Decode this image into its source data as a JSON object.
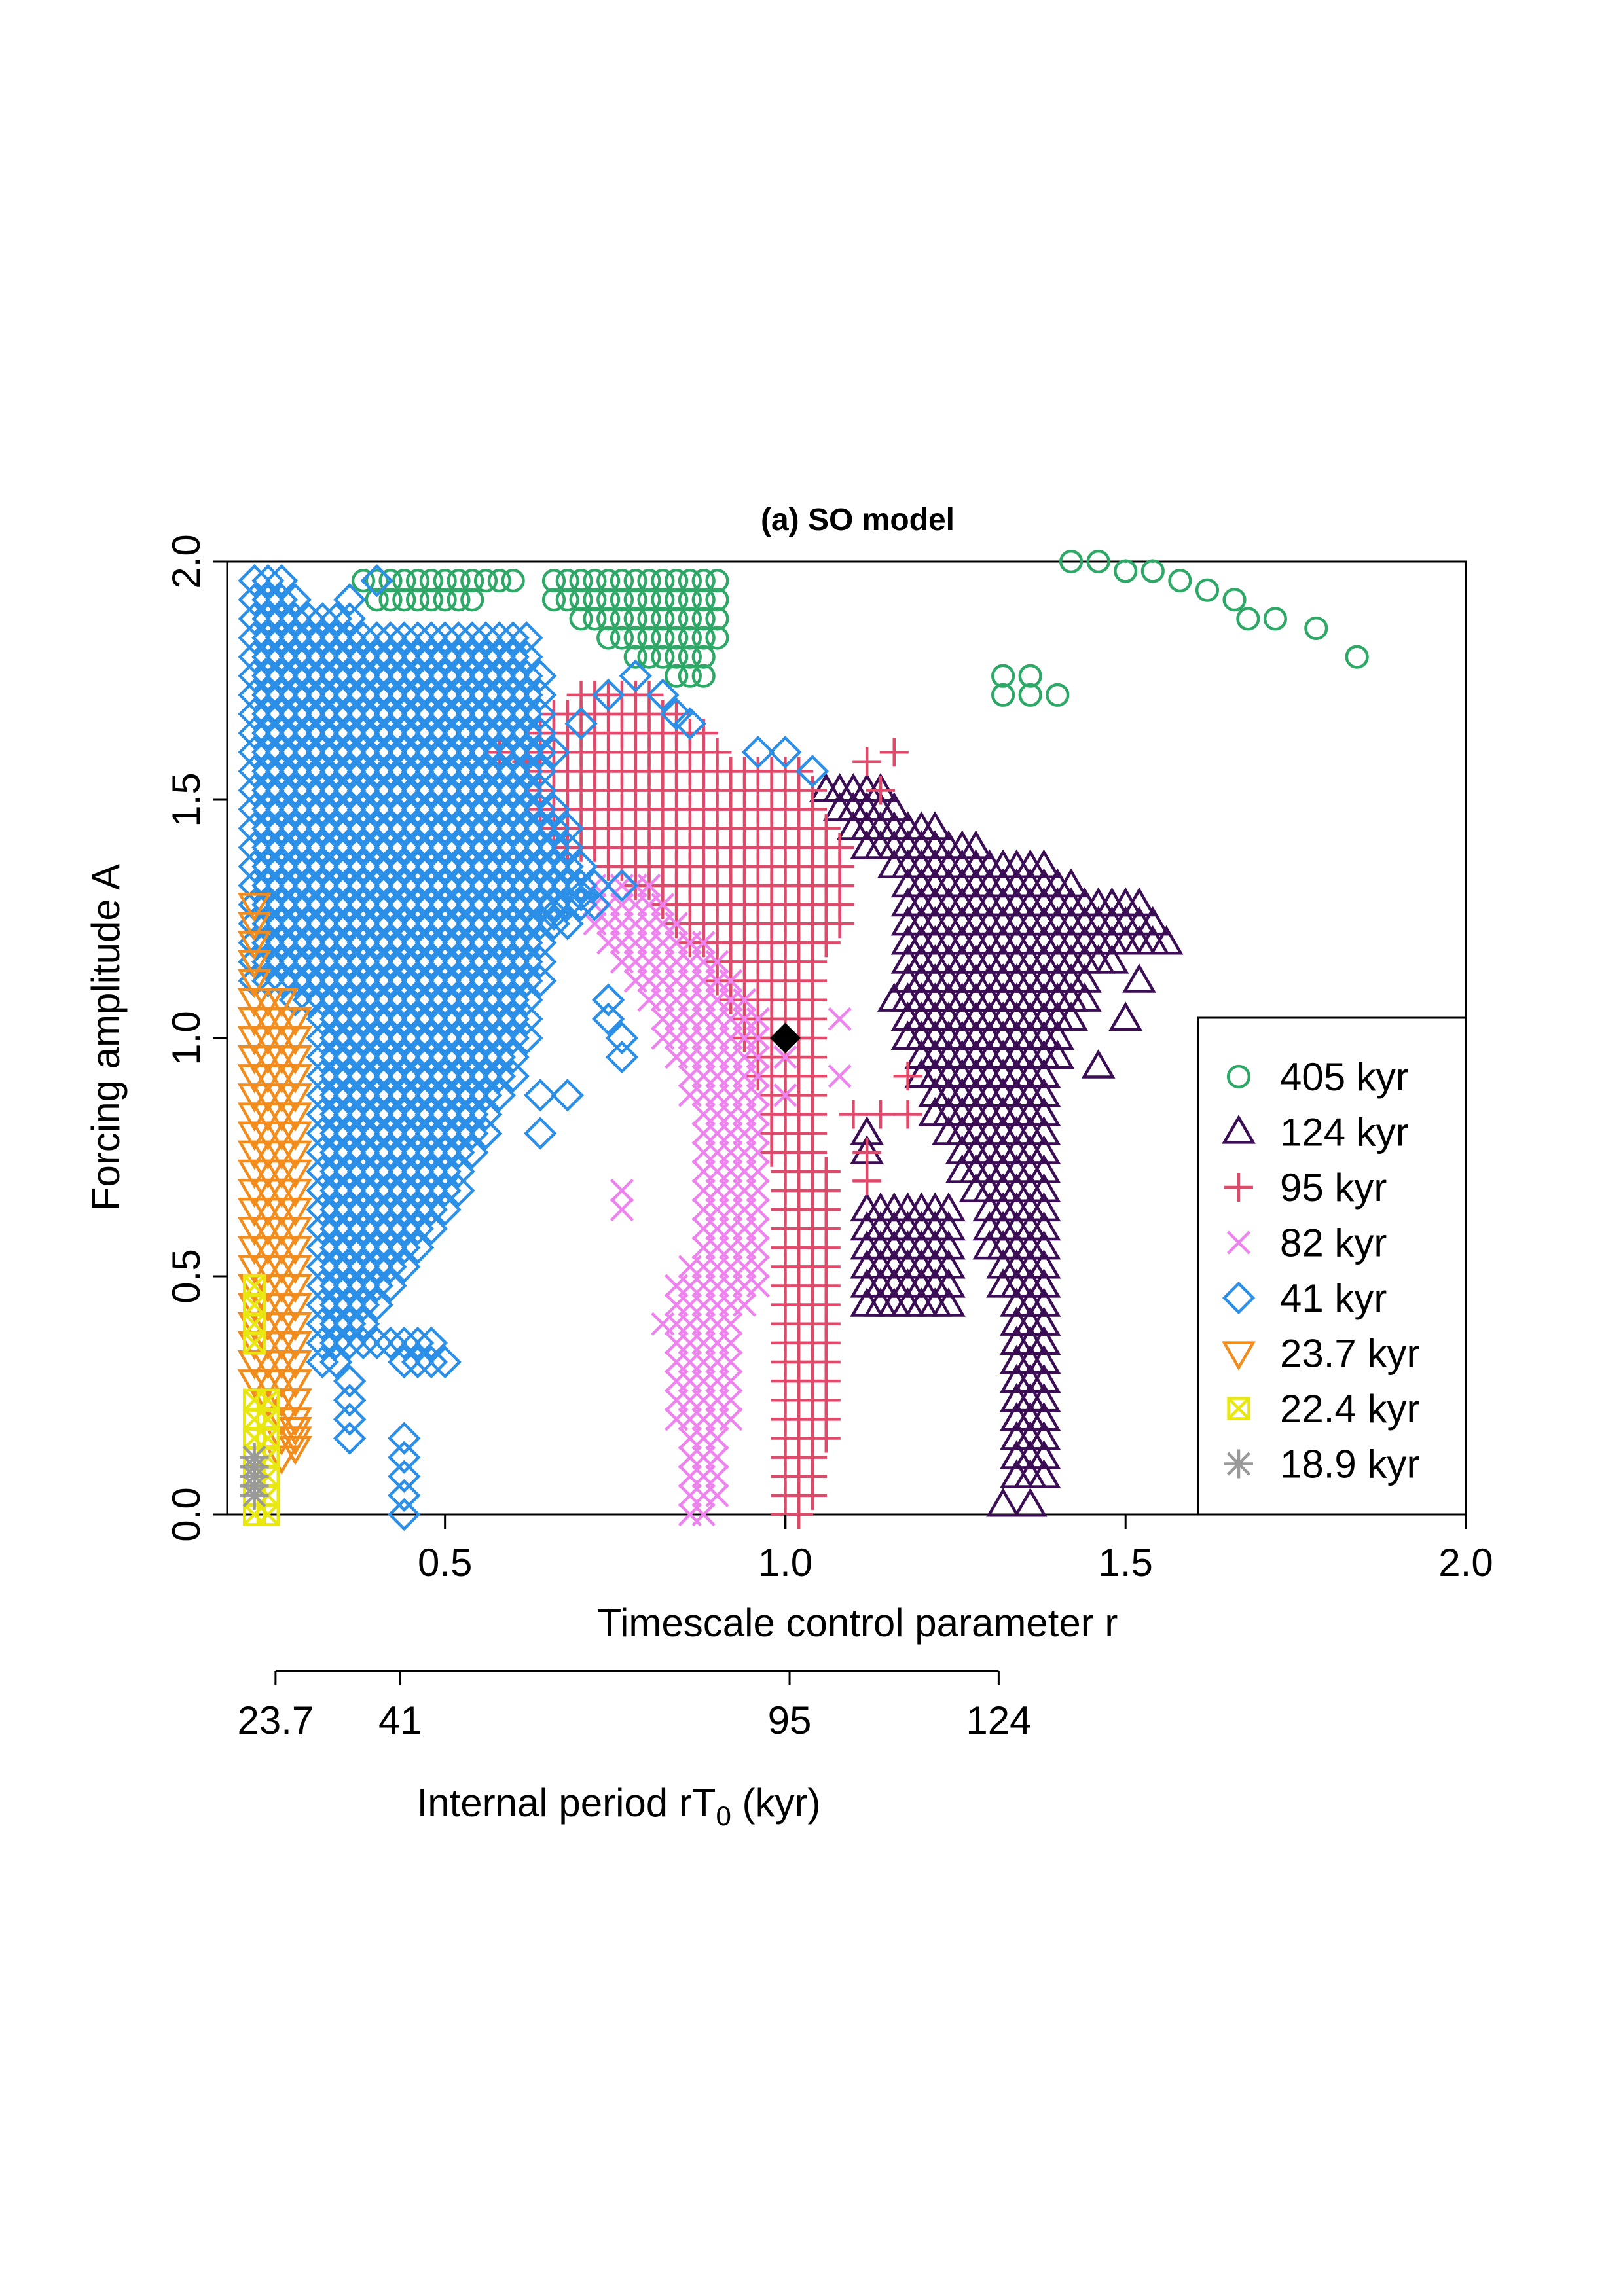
{
  "chart_data": {
    "type": "scatter",
    "title": "(a) SO model",
    "xlabel": "Timescale control parameter r",
    "ylabel": "Forcing amplitude A",
    "xlim": [
      0.18,
      2.0
    ],
    "ylim": [
      0.0,
      2.0
    ],
    "xticks": [
      0.5,
      1.0,
      1.5,
      2.0
    ],
    "yticks": [
      0.0,
      0.5,
      1.0,
      1.5,
      2.0
    ],
    "xtick_labels": [
      "0.5",
      "1.0",
      "1.5",
      "2.0"
    ],
    "ytick_labels": [
      "0.0",
      "0.5",
      "1.0",
      "1.5",
      "2.0"
    ],
    "grid": false,
    "legend_position": "bottom-right",
    "secondary_axis": {
      "label_main": "Internal period rT",
      "label_sub": "0",
      "label_unit": " (kyr)",
      "T0_kyr": 94.4,
      "ticks": [
        23.7,
        41,
        95,
        124
      ],
      "tick_labels": [
        "23.7",
        "41",
        "95",
        "124"
      ]
    },
    "marked_point": {
      "r": 1.0,
      "A": 1.0,
      "color": "#000000",
      "shape": "diamond-filled"
    },
    "series": [
      {
        "name": "405 kyr",
        "color": "#2ea866",
        "shape": "circle",
        "regions": [
          {
            "poly": [
              [
                0.35,
                2.0
              ],
              [
                0.6,
                2.0
              ],
              [
                0.62,
                1.95
              ],
              [
                0.5,
                1.9
              ],
              [
                0.4,
                1.92
              ],
              [
                0.35,
                1.98
              ]
            ]
          },
          {
            "poly": [
              [
                0.65,
                2.0
              ],
              [
                0.9,
                2.0
              ],
              [
                0.92,
                1.92
              ],
              [
                0.88,
                1.73
              ],
              [
                0.8,
                1.78
              ],
              [
                0.72,
                1.85
              ],
              [
                0.66,
                1.9
              ]
            ]
          }
        ],
        "points": [
          [
            1.32,
            1.76
          ],
          [
            1.36,
            1.76
          ],
          [
            1.32,
            1.72
          ],
          [
            1.36,
            1.72
          ],
          [
            1.4,
            1.72
          ],
          [
            1.84,
            1.8
          ],
          [
            1.72,
            1.88
          ],
          [
            1.68,
            1.88
          ],
          [
            1.66,
            1.92
          ],
          [
            1.62,
            1.94
          ],
          [
            1.58,
            1.96
          ],
          [
            1.54,
            1.98
          ],
          [
            1.5,
            1.98
          ],
          [
            1.46,
            2.0
          ],
          [
            1.42,
            2.0
          ],
          [
            1.78,
            1.86
          ]
        ]
      },
      {
        "name": "124 kyr",
        "color": "#3b0d55",
        "shape": "triangle-up",
        "regions": [
          {
            "poly": [
              [
                1.06,
                1.52
              ],
              [
                1.12,
                1.54
              ],
              [
                1.2,
                1.46
              ],
              [
                1.26,
                1.42
              ],
              [
                1.34,
                1.38
              ],
              [
                1.4,
                1.36
              ],
              [
                1.44,
                1.32
              ],
              [
                1.52,
                1.3
              ],
              [
                1.56,
                1.2
              ],
              [
                1.5,
                1.16
              ],
              [
                1.46,
                1.12
              ],
              [
                1.42,
                1.0
              ],
              [
                1.38,
                0.9
              ],
              [
                1.4,
                0.7
              ],
              [
                1.4,
                0.06
              ],
              [
                1.34,
                0.06
              ],
              [
                1.33,
                0.4
              ],
              [
                1.3,
                0.56
              ],
              [
                1.28,
                0.66
              ],
              [
                1.22,
                0.84
              ],
              [
                1.18,
                0.98
              ],
              [
                1.16,
                1.08
              ],
              [
                1.18,
                1.3
              ],
              [
                1.12,
                1.4
              ]
            ]
          },
          {
            "poly": [
              [
                1.12,
                0.66
              ],
              [
                1.26,
                0.66
              ],
              [
                1.26,
                0.44
              ],
              [
                1.12,
                0.44
              ]
            ]
          }
        ],
        "points": [
          [
            1.12,
            0.8
          ],
          [
            1.12,
            0.76
          ],
          [
            1.32,
            0.02
          ],
          [
            1.36,
            0.02
          ],
          [
            1.46,
            0.94
          ],
          [
            1.5,
            1.04
          ],
          [
            1.52,
            1.12
          ],
          [
            1.56,
            1.2
          ]
        ]
      },
      {
        "name": "95 kyr",
        "color": "#e04a6a",
        "shape": "plus",
        "regions": [
          {
            "poly": [
              [
                0.64,
                1.66
              ],
              [
                0.72,
                1.74
              ],
              [
                0.82,
                1.72
              ],
              [
                0.86,
                1.66
              ],
              [
                0.92,
                1.6
              ],
              [
                0.98,
                1.58
              ],
              [
                1.04,
                1.56
              ],
              [
                1.06,
                1.48
              ],
              [
                1.1,
                1.4
              ],
              [
                1.1,
                1.24
              ],
              [
                1.06,
                1.16
              ],
              [
                1.05,
                0.8
              ],
              [
                1.08,
                0.6
              ],
              [
                1.08,
                0.3
              ],
              [
                1.04,
                0.0
              ],
              [
                1.0,
                0.0
              ],
              [
                0.99,
                0.6
              ],
              [
                0.97,
                0.88
              ],
              [
                0.94,
                1.0
              ],
              [
                0.9,
                1.12
              ],
              [
                0.86,
                1.2
              ],
              [
                0.8,
                1.3
              ],
              [
                0.74,
                1.36
              ],
              [
                0.68,
                1.4
              ],
              [
                0.64,
                1.48
              ]
            ]
          }
        ],
        "points": [
          [
            0.58,
            1.6
          ],
          [
            0.62,
            1.58
          ],
          [
            1.12,
            1.58
          ],
          [
            1.16,
            1.6
          ],
          [
            1.14,
            1.52
          ],
          [
            1.1,
            0.84
          ],
          [
            1.14,
            0.84
          ],
          [
            1.18,
            0.92
          ],
          [
            1.18,
            0.84
          ],
          [
            1.12,
            0.76
          ],
          [
            1.12,
            0.7
          ]
        ]
      },
      {
        "name": "82 kyr",
        "color": "#ee82ee",
        "shape": "cross",
        "regions": [
          {
            "poly": [
              [
                0.72,
                1.32
              ],
              [
                0.8,
                1.34
              ],
              [
                0.84,
                1.26
              ],
              [
                0.9,
                1.2
              ],
              [
                0.94,
                1.1
              ],
              [
                0.98,
                1.0
              ],
              [
                0.98,
                0.5
              ],
              [
                0.94,
                0.4
              ],
              [
                0.92,
                0.18
              ],
              [
                0.9,
                0.0
              ],
              [
                0.86,
                0.0
              ],
              [
                0.84,
                0.2
              ],
              [
                0.82,
                0.4
              ],
              [
                0.84,
                0.5
              ],
              [
                0.88,
                0.6
              ],
              [
                0.88,
                0.8
              ],
              [
                0.82,
                1.0
              ],
              [
                0.76,
                1.16
              ],
              [
                0.72,
                1.22
              ]
            ]
          }
        ],
        "points": [
          [
            0.76,
            0.68
          ],
          [
            0.76,
            0.64
          ],
          [
            1.08,
            1.04
          ],
          [
            1.08,
            0.92
          ],
          [
            1.0,
            0.88
          ],
          [
            1.0,
            0.96
          ]
        ]
      },
      {
        "name": "41 kyr",
        "color": "#2b8fe8",
        "shape": "diamond",
        "regions": [
          {
            "poly": [
              [
                0.22,
                2.0
              ],
              [
                0.26,
                2.0
              ],
              [
                0.3,
                1.92
              ],
              [
                0.38,
                1.88
              ],
              [
                0.48,
                1.84
              ],
              [
                0.56,
                1.86
              ],
              [
                0.62,
                1.88
              ],
              [
                0.64,
                1.8
              ],
              [
                0.66,
                1.5
              ],
              [
                0.7,
                1.4
              ],
              [
                0.75,
                1.3
              ],
              [
                0.72,
                1.26
              ],
              [
                0.66,
                1.2
              ],
              [
                0.64,
                1.1
              ],
              [
                0.62,
                0.96
              ],
              [
                0.58,
                0.84
              ],
              [
                0.52,
                0.66
              ],
              [
                0.44,
                0.5
              ],
              [
                0.36,
                0.34
              ],
              [
                0.32,
                0.28
              ],
              [
                0.32,
                1.06
              ],
              [
                0.22,
                1.1
              ]
            ]
          },
          {
            "poly": [
              [
                0.22,
                1.34
              ],
              [
                0.26,
                1.36
              ],
              [
                0.26,
                1.1
              ],
              [
                0.22,
                1.1
              ]
            ]
          },
          {
            "poly": [
              [
                0.38,
                0.36
              ],
              [
                0.46,
                0.3
              ],
              [
                0.5,
                0.3
              ],
              [
                0.52,
                0.34
              ],
              [
                0.46,
                0.38
              ],
              [
                0.4,
                0.4
              ]
            ]
          }
        ],
        "points": [
          [
            0.66,
            1.6
          ],
          [
            0.7,
            1.66
          ],
          [
            0.74,
            1.72
          ],
          [
            0.78,
            1.76
          ],
          [
            0.82,
            1.72
          ],
          [
            0.84,
            1.68
          ],
          [
            0.86,
            1.66
          ],
          [
            0.96,
            1.6
          ],
          [
            1.0,
            1.6
          ],
          [
            1.04,
            1.56
          ],
          [
            0.76,
            1.32
          ],
          [
            0.7,
            1.3
          ],
          [
            0.66,
            1.26
          ],
          [
            0.74,
            1.08
          ],
          [
            0.74,
            1.04
          ],
          [
            0.76,
            1.0
          ],
          [
            0.76,
            0.96
          ],
          [
            0.64,
            0.88
          ],
          [
            0.68,
            0.88
          ],
          [
            0.64,
            0.8
          ],
          [
            0.56,
            0.8
          ],
          [
            0.36,
            0.28
          ],
          [
            0.36,
            0.24
          ],
          [
            0.36,
            0.2
          ],
          [
            0.36,
            0.16
          ],
          [
            0.44,
            0.16
          ],
          [
            0.44,
            0.12
          ],
          [
            0.44,
            0.08
          ],
          [
            0.44,
            0.04
          ],
          [
            0.44,
            0.0
          ],
          [
            0.4,
            1.96
          ],
          [
            0.36,
            1.92
          ]
        ]
      },
      {
        "name": "23.7 kyr",
        "color": "#f28c1c",
        "shape": "triangle-down",
        "regions": [
          {
            "poly": [
              [
                0.22,
                1.32
              ],
              [
                0.24,
                1.32
              ],
              [
                0.24,
                1.1
              ],
              [
                0.3,
                1.06
              ],
              [
                0.3,
                0.16
              ],
              [
                0.28,
                0.12
              ],
              [
                0.26,
                0.12
              ],
              [
                0.24,
                0.24
              ],
              [
                0.22,
                0.28
              ]
            ]
          }
        ],
        "points": [
          [
            0.28,
            0.18
          ],
          [
            0.28,
            0.14
          ]
        ]
      },
      {
        "name": "22.4 kyr",
        "color": "#e8e810",
        "shape": "square-cross",
        "regions": [
          {
            "poly": [
              [
                0.22,
                0.26
              ],
              [
                0.26,
                0.26
              ],
              [
                0.26,
                0.0
              ],
              [
                0.22,
                0.0
              ]
            ]
          },
          {
            "poly": [
              [
                0.22,
                0.5
              ],
              [
                0.23,
                0.5
              ],
              [
                0.23,
                0.36
              ],
              [
                0.22,
                0.36
              ]
            ]
          }
        ],
        "points": []
      },
      {
        "name": "18.9 kyr",
        "color": "#9a9a9a",
        "shape": "asterisk",
        "regions": [],
        "points": [
          [
            0.22,
            0.12
          ],
          [
            0.22,
            0.1
          ],
          [
            0.22,
            0.08
          ],
          [
            0.22,
            0.06
          ],
          [
            0.22,
            0.04
          ]
        ]
      }
    ]
  }
}
